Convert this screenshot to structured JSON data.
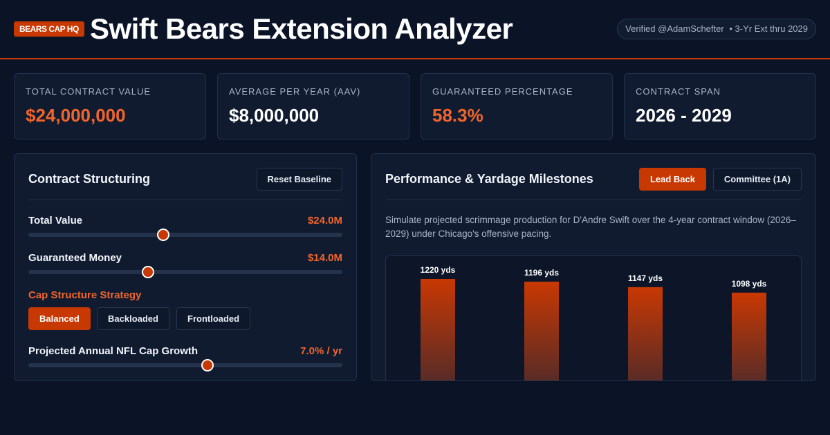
{
  "header": {
    "brand": "BEARS CAP HQ",
    "title": "Swift Bears Extension Analyzer",
    "verified": "Verified @AdamSchefter",
    "extension": "• 3-Yr Ext thru 2029"
  },
  "stats": [
    {
      "label": "TOTAL CONTRACT VALUE",
      "value": "$24,000,000"
    },
    {
      "label": "AVERAGE PER YEAR (AAV)",
      "value": "$8,000,000"
    },
    {
      "label": "GUARANTEED PERCENTAGE",
      "value": "58.3%"
    },
    {
      "label": "CONTRACT SPAN",
      "value": "2026 - 2029"
    }
  ],
  "structuring": {
    "title": "Contract Structuring",
    "reset_label": "Reset Baseline",
    "total_value": {
      "label": "Total Value",
      "value": "$24.0M",
      "fraction": 0.43
    },
    "guaranteed": {
      "label": "Guaranteed Money",
      "value": "$14.0M",
      "fraction": 0.38
    },
    "strategy_title": "Cap Structure Strategy",
    "strategies": [
      "Balanced",
      "Backloaded",
      "Frontloaded"
    ],
    "selected_strategy": "Balanced",
    "cap_growth": {
      "label": "Projected Annual NFL Cap Growth",
      "value": "7.0% / yr",
      "fraction": 0.57
    }
  },
  "performance": {
    "title": "Performance & Yardage Milestones",
    "tabs": [
      "Lead Back",
      "Committee (1A)"
    ],
    "active_tab": "Lead Back",
    "description": "Simulate projected scrimmage production for D'Andre Swift over the 4-year contract window (2026–2029) under Chicago's offensive pacing."
  },
  "chart_data": {
    "type": "bar",
    "values": [
      1220,
      1196,
      1147,
      1098
    ],
    "labels": [
      "1220 yds",
      "1196 yds",
      "1147 yds",
      "1098 yds"
    ],
    "colors": {
      "top": "#c83803",
      "bottom": "#4a2a2c"
    }
  }
}
